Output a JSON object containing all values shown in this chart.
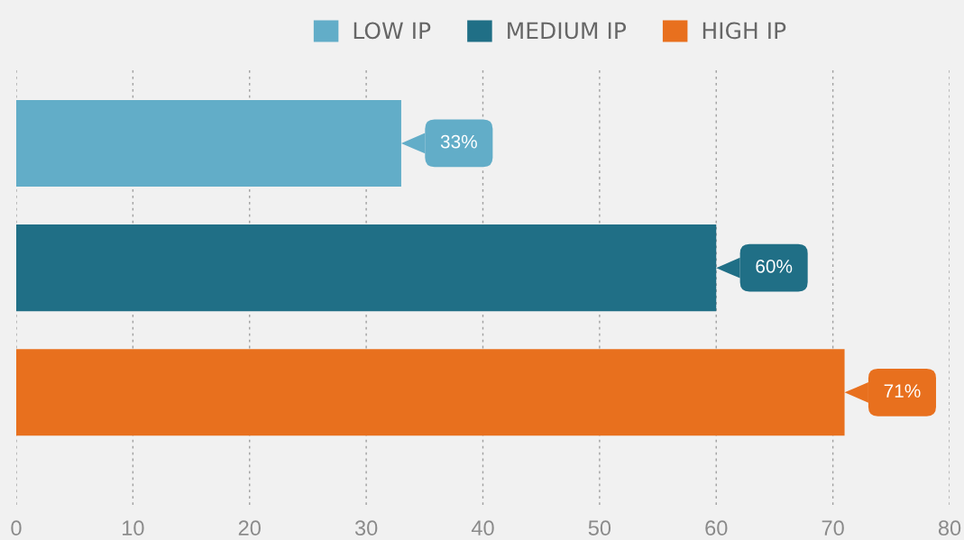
{
  "chart_data": {
    "type": "bar",
    "orientation": "horizontal",
    "categories": [
      null
    ],
    "series": [
      {
        "name": "LOW IP",
        "color": "#62adc8",
        "values": [
          33
        ],
        "value_labels": [
          "33%"
        ]
      },
      {
        "name": "MEDIUM IP",
        "color": "#206f86",
        "values": [
          60
        ],
        "value_labels": [
          "60%"
        ]
      },
      {
        "name": "HIGH IP",
        "color": "#e8701e",
        "values": [
          71
        ],
        "value_labels": [
          "71%"
        ]
      }
    ],
    "xlim": [
      0,
      80
    ],
    "xticks": [
      0,
      10,
      20,
      30,
      40,
      50,
      60,
      70,
      80
    ],
    "grid": "x",
    "legend": "top",
    "tick_labels": "x"
  }
}
